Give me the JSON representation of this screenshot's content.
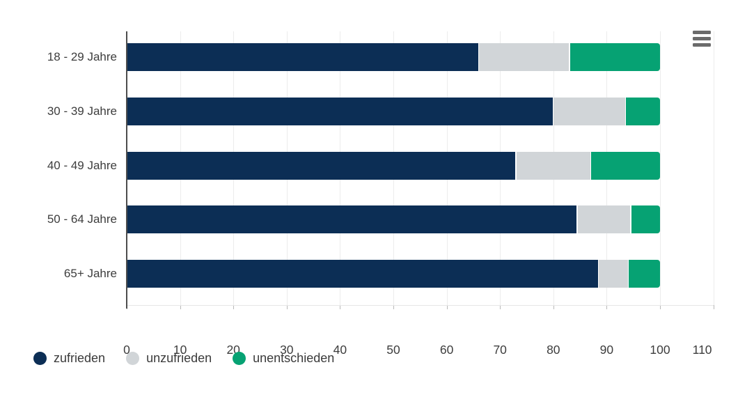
{
  "chart": {
    "menu": {
      "icon": "hamburger-menu-icon"
    },
    "colors": {
      "zufrieden": "#0c2e55",
      "unzufrieden": "#d1d5d8",
      "unentschieden": "#06a273",
      "axis_line": "#4d4d4d",
      "gridline": "#ececec",
      "text": "#3d3d3d"
    }
  },
  "chart_data": {
    "type": "bar",
    "orientation": "horizontal",
    "stacked": true,
    "title": "",
    "xlabel": "",
    "ylabel": "",
    "categories": [
      "18 - 29 Jahre",
      "30 - 39 Jahre",
      "40 - 49 Jahre",
      "50 - 64 Jahre",
      "65+ Jahre"
    ],
    "series": [
      {
        "name": "zufrieden",
        "color": "#0c2e55",
        "values": [
          66,
          80,
          73,
          84.5,
          88.5
        ]
      },
      {
        "name": "unzufrieden",
        "color": "#d1d5d8",
        "values": [
          17,
          13.5,
          14,
          10,
          5.5
        ]
      },
      {
        "name": "unentschieden",
        "color": "#06a273",
        "values": [
          17,
          6.5,
          13,
          5.5,
          6
        ]
      }
    ],
    "totals": [
      100,
      100,
      100,
      100,
      100
    ],
    "xlim": [
      0,
      110
    ],
    "x_ticks": [
      0,
      10,
      20,
      30,
      40,
      50,
      60,
      70,
      80,
      90,
      100,
      110
    ],
    "grid": true,
    "legend_position": "bottom-left",
    "legend": [
      "zufrieden",
      "unzufrieden",
      "unentschieden"
    ]
  }
}
